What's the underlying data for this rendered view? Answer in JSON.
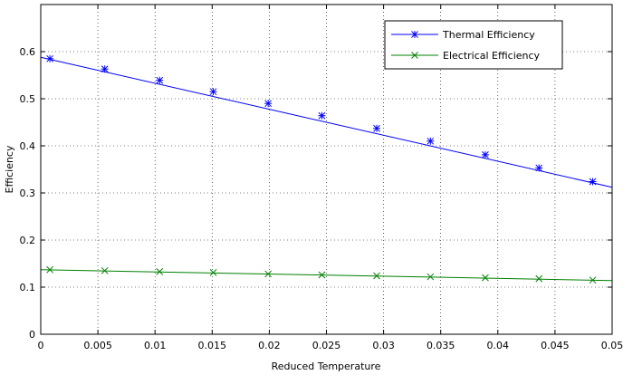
{
  "chart_data": {
    "type": "line",
    "title": "",
    "xlabel": "Reduced Temperature",
    "ylabel": "Efficiency",
    "xlim": [
      0,
      0.05
    ],
    "ylim": [
      0,
      0.7
    ],
    "xticks": [
      0,
      0.005,
      0.01,
      0.015,
      0.02,
      0.025,
      0.03,
      0.035,
      0.04,
      0.045,
      0.05
    ],
    "xtick_labels": [
      "0",
      "0.005",
      "0.01",
      "0.015",
      "0.02",
      "0.025",
      "0.03",
      "0.035",
      "0.04",
      "0.045",
      "0.05"
    ],
    "yticks": [
      0,
      0.1,
      0.2,
      0.3,
      0.4,
      0.5,
      0.6
    ],
    "ytick_labels": [
      "0",
      "0.1",
      "0.2",
      "0.3",
      "0.4",
      "0.5",
      "0.6"
    ],
    "grid": true,
    "legend_position": "top-right",
    "series": [
      {
        "name": "Thermal Efficiency",
        "color": "#0000ff",
        "marker": "asterisk",
        "line_x": [
          0,
          0.05
        ],
        "line_y": [
          0.588,
          0.312
        ],
        "marker_x": [
          0.0008,
          0.0056,
          0.0104,
          0.0151,
          0.0199,
          0.0246,
          0.0294,
          0.0341,
          0.0389,
          0.0436,
          0.0483
        ],
        "marker_y": [
          0.585,
          0.563,
          0.539,
          0.515,
          0.49,
          0.464,
          0.437,
          0.41,
          0.381,
          0.353,
          0.324
        ]
      },
      {
        "name": "Electrical Efficiency",
        "color": "#008000",
        "marker": "x",
        "line_x": [
          0,
          0.05
        ],
        "line_y": [
          0.137,
          0.114
        ],
        "marker_x": [
          0.0008,
          0.0056,
          0.0104,
          0.0151,
          0.0199,
          0.0246,
          0.0294,
          0.0341,
          0.0389,
          0.0436,
          0.0483
        ],
        "marker_y": [
          0.137,
          0.135,
          0.133,
          0.131,
          0.128,
          0.126,
          0.124,
          0.122,
          0.12,
          0.118,
          0.115
        ]
      }
    ]
  }
}
